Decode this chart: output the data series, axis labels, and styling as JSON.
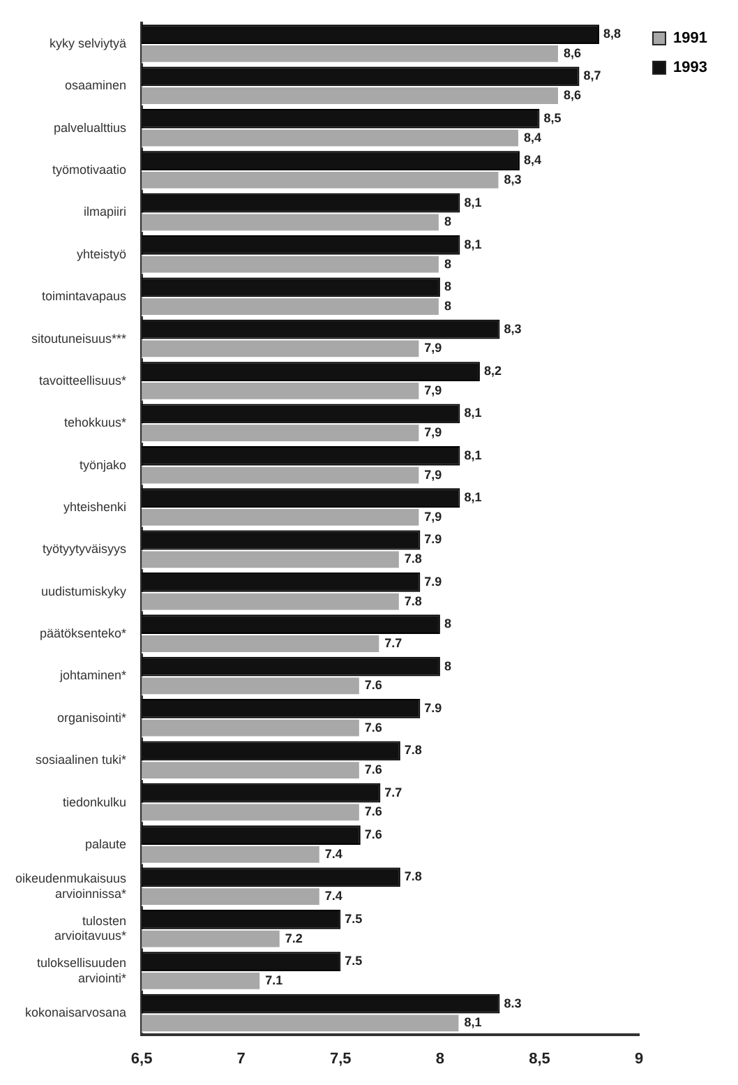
{
  "chart_data": {
    "type": "bar",
    "orientation": "horizontal",
    "categories": [
      "kyky selviytyä",
      "osaaminen",
      "palvelualttius",
      "työmotivaatio",
      "ilmapiiri",
      "yhteistyö",
      "toimintavapaus",
      "sitoutuneisuus***",
      "tavoitteellisuus*",
      "tehokkuus*",
      "työnjako",
      "yhteishenki",
      "työtyytyväisyys",
      "uudistumiskyky",
      "päätöksenteko*",
      "johtaminen*",
      "organisointi*",
      "sosiaalinen tuki*",
      "tiedonkulku",
      "palaute",
      "oikeudenmukaisuus arvioinnissa*",
      "tulosten arvioitavuus*",
      "tuloksellisuuden arviointi*",
      "kokonaisarvosana"
    ],
    "series": [
      {
        "name": "1993",
        "color": "#111111",
        "values": [
          8.8,
          8.7,
          8.5,
          8.4,
          8.1,
          8.1,
          8,
          8.3,
          8.2,
          8.1,
          8.1,
          8.1,
          7.9,
          7.9,
          8,
          8,
          7.9,
          7.8,
          7.7,
          7.6,
          7.8,
          7.5,
          7.5,
          8.3
        ],
        "value_labels": [
          "8,8",
          "8,7",
          "8,5",
          "8,4",
          "8,1",
          "8,1",
          "8",
          "8,3",
          "8,2",
          "8,1",
          "8,1",
          "8,1",
          "7.9",
          "7.9",
          "8",
          "8",
          "7.9",
          "7.8",
          "7.7",
          "7.6",
          "7.8",
          "7.5",
          "7.5",
          "8.3"
        ]
      },
      {
        "name": "1991",
        "color": "#a8a8a8",
        "values": [
          8.6,
          8.6,
          8.4,
          8.3,
          8,
          8,
          8,
          7.9,
          7.9,
          7.9,
          7.9,
          7.9,
          7.8,
          7.8,
          7.7,
          7.6,
          7.6,
          7.6,
          7.6,
          7.4,
          7.4,
          7.2,
          7.1,
          8.1
        ],
        "value_labels": [
          "8,6",
          "8,6",
          "8,4",
          "8,3",
          "8",
          "8",
          "8",
          "7,9",
          "7,9",
          "7,9",
          "7,9",
          "7,9",
          "7.8",
          "7.8",
          "7.7",
          "7.6",
          "7.6",
          "7.6",
          "7.6",
          "7.4",
          "7.4",
          "7.2",
          "7.1",
          "8,1"
        ]
      }
    ],
    "xlim": [
      6.5,
      9
    ],
    "xticks": [
      {
        "value": 6.5,
        "label": "6,5"
      },
      7,
      {
        "value": 7.5,
        "label": "7,5"
      },
      8,
      {
        "value": 8.5,
        "label": "8,5"
      },
      9
    ],
    "grid": false,
    "legend": "right"
  }
}
